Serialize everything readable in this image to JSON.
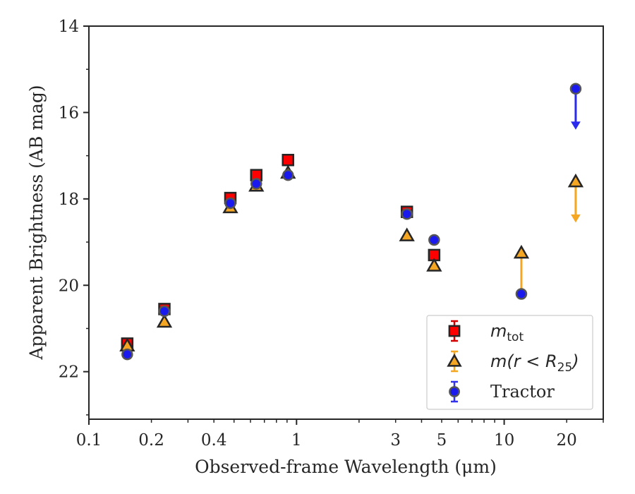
{
  "chart_data": {
    "type": "scatter",
    "xlabel": "Observed-frame Wavelength (μm)",
    "ylabel": "Apparent Brightness (AB mag)",
    "xscale": "log",
    "yaxis_inverted": true,
    "xlim": [
      0.1,
      30
    ],
    "ylim": [
      14,
      23.1
    ],
    "xticks": [
      {
        "value": 0.1,
        "label": "0.1"
      },
      {
        "value": 0.2,
        "label": "0.2"
      },
      {
        "value": 0.4,
        "label": "0.4"
      },
      {
        "value": 1,
        "label": "1"
      },
      {
        "value": 3,
        "label": "3"
      },
      {
        "value": 5,
        "label": "5"
      },
      {
        "value": 10,
        "label": "10"
      },
      {
        "value": 20,
        "label": "20"
      }
    ],
    "yticks": [
      {
        "value": 14,
        "label": "14"
      },
      {
        "value": 16,
        "label": "16"
      },
      {
        "value": 18,
        "label": "18"
      },
      {
        "value": 20,
        "label": "20"
      },
      {
        "value": 22,
        "label": "22"
      }
    ],
    "legend_position": "lower-right",
    "grid": false,
    "series": [
      {
        "name": "m_tot",
        "legend_main": "m",
        "legend_sub": "tot",
        "marker": "square",
        "color": "#ff0000",
        "errcolor": "#d40000",
        "points": [
          {
            "x": 0.153,
            "y": 21.35
          },
          {
            "x": 0.231,
            "y": 20.55
          },
          {
            "x": 0.48,
            "y": 17.98
          },
          {
            "x": 0.64,
            "y": 17.45
          },
          {
            "x": 0.91,
            "y": 17.1
          },
          {
            "x": 3.4,
            "y": 18.3
          },
          {
            "x": 4.6,
            "y": 19.3
          }
        ]
      },
      {
        "name": "m(r < R_25)",
        "legend_main": "m(r < R",
        "legend_sub": "25",
        "legend_close": ")",
        "marker": "triangle",
        "color": "#f5a623",
        "errcolor": "#f5a623",
        "points": [
          {
            "x": 0.153,
            "y": 21.4
          },
          {
            "x": 0.231,
            "y": 20.85
          },
          {
            "x": 0.48,
            "y": 18.2
          },
          {
            "x": 0.64,
            "y": 17.7
          },
          {
            "x": 0.91,
            "y": 17.4
          },
          {
            "x": 3.4,
            "y": 18.85
          },
          {
            "x": 4.6,
            "y": 19.55
          },
          {
            "x": 12.1,
            "y": 19.25
          },
          {
            "x": 22.1,
            "y": 17.6,
            "upper_limit": true
          }
        ]
      },
      {
        "name": "Tractor",
        "legend_main": "Tractor",
        "marker": "circle",
        "color": "#1a1aee",
        "errcolor": "#3333ee",
        "points": [
          {
            "x": 0.153,
            "y": 21.6
          },
          {
            "x": 0.231,
            "y": 20.6
          },
          {
            "x": 0.48,
            "y": 18.1
          },
          {
            "x": 0.64,
            "y": 17.65
          },
          {
            "x": 0.91,
            "y": 17.45
          },
          {
            "x": 3.4,
            "y": 18.35
          },
          {
            "x": 4.6,
            "y": 18.95
          },
          {
            "x": 12.1,
            "y": 20.2
          },
          {
            "x": 22.1,
            "y": 15.45,
            "upper_limit": true
          }
        ]
      }
    ],
    "connectors": [
      {
        "x": 12.1,
        "from": 19.25,
        "to": 20.2,
        "color": "#f5a623"
      }
    ]
  }
}
